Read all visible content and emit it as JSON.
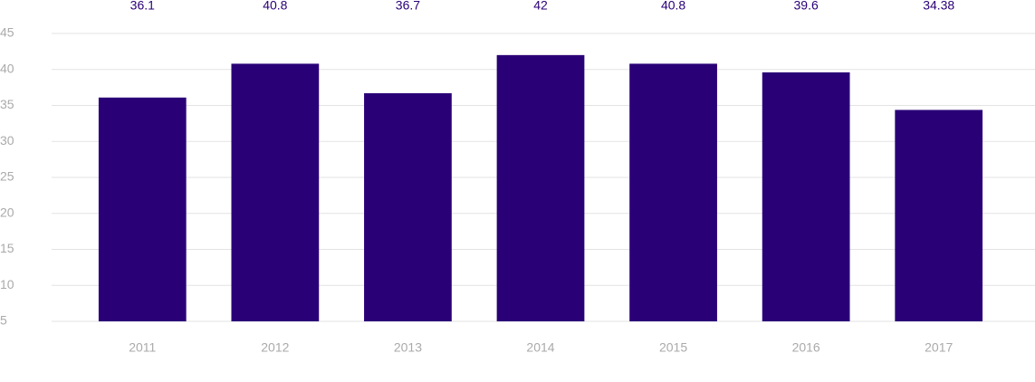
{
  "chart_data": {
    "type": "bar",
    "categories": [
      "2011",
      "2012",
      "2013",
      "2014",
      "2015",
      "2016",
      "2017"
    ],
    "values": [
      36.1,
      40.8,
      36.7,
      42,
      40.8,
      39.6,
      34.38
    ],
    "color": "#2a0077",
    "ylim": [
      5,
      45
    ],
    "yticks": [
      5,
      10,
      15,
      20,
      25,
      30,
      35,
      40,
      45
    ],
    "grid": true
  }
}
